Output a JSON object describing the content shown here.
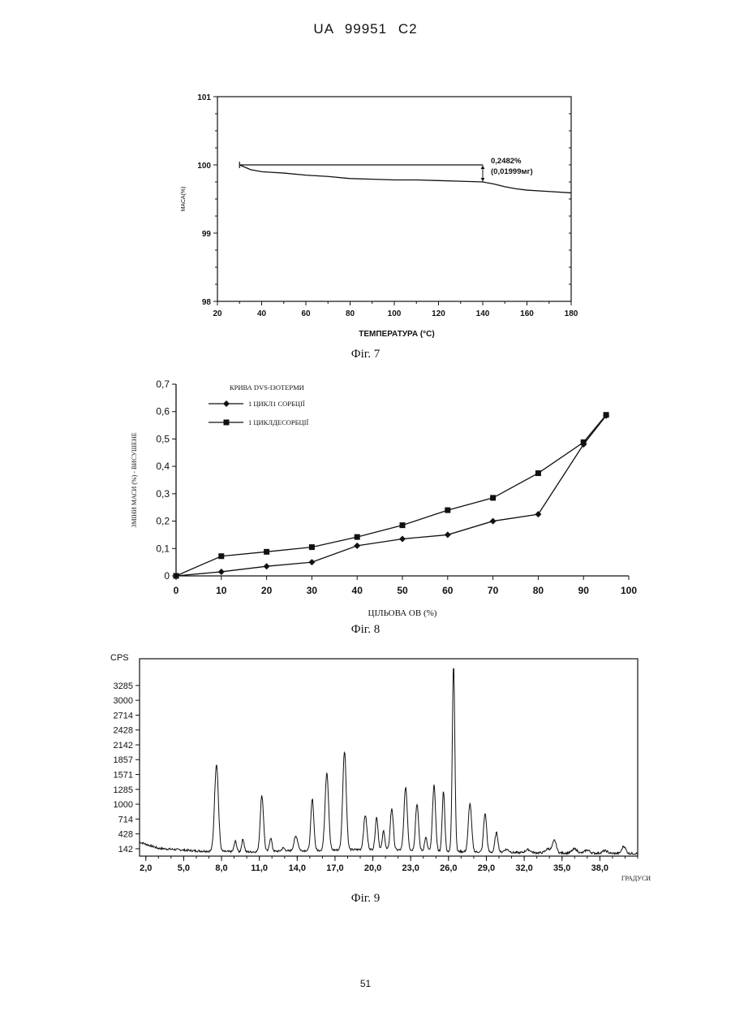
{
  "page": {
    "header": "UA 99951 C2",
    "page_number": "51",
    "captions": [
      "Фіг. 7",
      "Фіг. 8",
      "Фіг. 9"
    ]
  },
  "chart_data": [
    {
      "id": "fig7",
      "type": "line",
      "xlabel": "ТЕМПЕРАТУРА (°C)",
      "ylabel": "МАСА(%)",
      "xlim": [
        20,
        180
      ],
      "ylim": [
        98,
        101
      ],
      "x_ticks": [
        20,
        40,
        60,
        80,
        100,
        120,
        140,
        160,
        180
      ],
      "y_ticks": [
        98,
        99,
        100,
        101
      ],
      "series": [
        {
          "x": [
            30,
            35,
            40,
            45,
            50,
            60,
            70,
            80,
            90,
            100,
            110,
            120,
            130,
            140,
            145,
            150,
            155,
            160,
            170,
            180
          ],
          "y": [
            100.0,
            99.93,
            99.9,
            99.89,
            99.88,
            99.85,
            99.83,
            99.8,
            99.79,
            99.78,
            99.78,
            99.77,
            99.76,
            99.75,
            99.72,
            99.68,
            99.65,
            99.63,
            99.61,
            99.59
          ]
        }
      ],
      "annotation": {
        "lines": [
          "0,2482%",
          "(0,01999мг)"
        ],
        "from": [
          30,
          100.0
        ],
        "to": [
          140,
          99.75
        ]
      }
    },
    {
      "id": "fig8",
      "type": "line",
      "title": "КРИВА DVS-ІЗОТЕРМИ",
      "xlabel": "ЦІЛЬОВА ОВ (%)",
      "ylabel": "ЗМІНИ МАСИ (%) - ВИСУШЕНЕ",
      "xlim": [
        0,
        100
      ],
      "ylim": [
        0,
        0.7
      ],
      "x_ticks": [
        "0",
        "10",
        "20",
        "30",
        "40",
        "50",
        "60",
        "70",
        "80",
        "90",
        "100"
      ],
      "y_ticks": [
        "0",
        "0,1",
        "0,2",
        "0,3",
        "0,4",
        "0,5",
        "0,6",
        "0,7"
      ],
      "legend_position": "top-left",
      "series": [
        {
          "name": "1 ЦИКЛ1 СОРБЦІЇ",
          "marker": "diamond",
          "x": [
            0,
            10,
            20,
            30,
            40,
            50,
            60,
            70,
            80,
            90,
            95
          ],
          "y": [
            0,
            0.015,
            0.035,
            0.05,
            0.11,
            0.135,
            0.15,
            0.2,
            0.225,
            0.48,
            0.585
          ]
        },
        {
          "name": "1 ЦИКЛДЕСОРБЦІЇ",
          "marker": "square",
          "x": [
            0,
            10,
            20,
            30,
            40,
            50,
            60,
            70,
            80,
            90,
            95
          ],
          "y": [
            0,
            0.072,
            0.088,
            0.105,
            0.142,
            0.185,
            0.24,
            0.285,
            0.375,
            0.488,
            0.588
          ]
        }
      ]
    },
    {
      "id": "fig9",
      "type": "line",
      "ylabel": "CPS",
      "xlabel": "ГРАДУСИ",
      "xlim": [
        1.5,
        41
      ],
      "ylim": [
        0,
        3800
      ],
      "x_ticks": [
        "2,0",
        "5,0",
        "8,0",
        "11,0",
        "14,0",
        "17,0",
        "20,0",
        "23,0",
        "26,0",
        "29,0",
        "32,0",
        "35,0",
        "38,0"
      ],
      "y_ticks": [
        "142",
        "428",
        "714",
        "1000",
        "1285",
        "1571",
        "1857",
        "2142",
        "2428",
        "2714",
        "3000",
        "3285"
      ],
      "baseline": [
        [
          1.5,
          270
        ],
        [
          3,
          150
        ],
        [
          6,
          100
        ],
        [
          10,
          80
        ],
        [
          15,
          110
        ],
        [
          20,
          130
        ],
        [
          25,
          100
        ],
        [
          30,
          70
        ],
        [
          35,
          60
        ],
        [
          41,
          50
        ]
      ],
      "peaks": [
        {
          "x": 7.6,
          "h": 1680,
          "w": 0.15
        },
        {
          "x": 9.1,
          "h": 200,
          "w": 0.1
        },
        {
          "x": 9.7,
          "h": 240,
          "w": 0.1
        },
        {
          "x": 11.2,
          "h": 1080,
          "w": 0.13
        },
        {
          "x": 11.9,
          "h": 260,
          "w": 0.1
        },
        {
          "x": 12.9,
          "h": 60,
          "w": 0.12
        },
        {
          "x": 13.9,
          "h": 280,
          "w": 0.15
        },
        {
          "x": 15.2,
          "h": 980,
          "w": 0.12
        },
        {
          "x": 16.35,
          "h": 1500,
          "w": 0.14
        },
        {
          "x": 17.75,
          "h": 1900,
          "w": 0.14
        },
        {
          "x": 19.4,
          "h": 660,
          "w": 0.13
        },
        {
          "x": 20.3,
          "h": 620,
          "w": 0.11
        },
        {
          "x": 20.85,
          "h": 360,
          "w": 0.1
        },
        {
          "x": 21.5,
          "h": 800,
          "w": 0.12
        },
        {
          "x": 22.6,
          "h": 1220,
          "w": 0.13
        },
        {
          "x": 23.5,
          "h": 900,
          "w": 0.12
        },
        {
          "x": 24.2,
          "h": 250,
          "w": 0.1
        },
        {
          "x": 24.85,
          "h": 1260,
          "w": 0.12
        },
        {
          "x": 25.6,
          "h": 1160,
          "w": 0.1
        },
        {
          "x": 26.4,
          "h": 3600,
          "w": 0.1
        },
        {
          "x": 27.7,
          "h": 930,
          "w": 0.13
        },
        {
          "x": 28.9,
          "h": 750,
          "w": 0.12
        },
        {
          "x": 29.8,
          "h": 380,
          "w": 0.12
        },
        {
          "x": 30.6,
          "h": 60,
          "w": 0.2
        },
        {
          "x": 32.3,
          "h": 60,
          "w": 0.2
        },
        {
          "x": 33.9,
          "h": 80,
          "w": 0.2
        },
        {
          "x": 34.4,
          "h": 240,
          "w": 0.15
        },
        {
          "x": 36.0,
          "h": 80,
          "w": 0.2
        },
        {
          "x": 37.0,
          "h": 60,
          "w": 0.2
        },
        {
          "x": 38.4,
          "h": 50,
          "w": 0.2
        },
        {
          "x": 39.9,
          "h": 140,
          "w": 0.15
        }
      ]
    }
  ]
}
